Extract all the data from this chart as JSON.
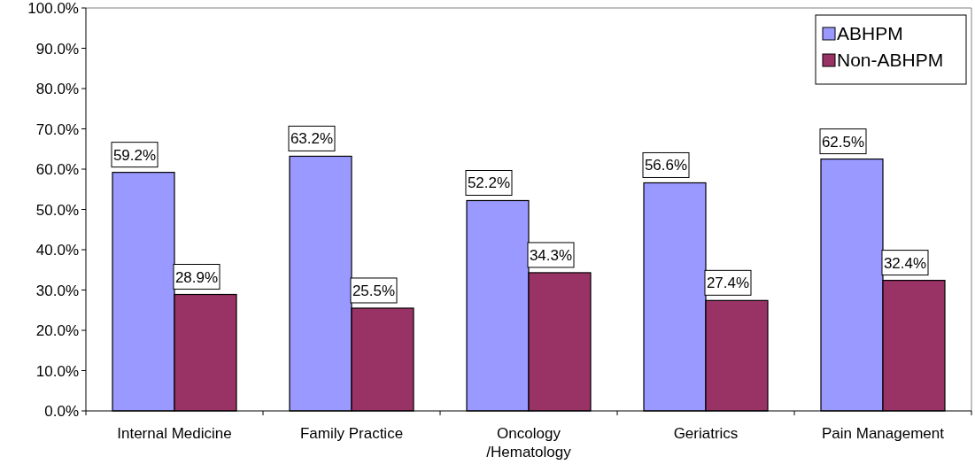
{
  "chart_data": {
    "type": "bar",
    "categories": [
      "Internal Medicine",
      "Family Practice",
      "Oncology /Hematology",
      "Geriatrics",
      "Pain Management"
    ],
    "series": [
      {
        "name": "ABHPM",
        "color": "#9999ff",
        "values": [
          59.2,
          63.2,
          52.2,
          56.6,
          62.5
        ],
        "value_labels": [
          "59.2%",
          "63.2%",
          "52.2%",
          "56.6%",
          "62.5%"
        ]
      },
      {
        "name": "Non-ABHPM",
        "color": "#993366",
        "values": [
          28.9,
          25.5,
          34.3,
          27.4,
          32.4
        ],
        "value_labels": [
          "28.9%",
          "25.5%",
          "34.3%",
          "27.4%",
          "32.4%"
        ]
      }
    ],
    "ylim": [
      0,
      100
    ],
    "yticks": [
      {
        "value": 0,
        "label": "0.0%"
      },
      {
        "value": 10,
        "label": "10.0%"
      },
      {
        "value": 20,
        "label": "20.0%"
      },
      {
        "value": 30,
        "label": "30.0%"
      },
      {
        "value": 40,
        "label": "40.0%"
      },
      {
        "value": 50,
        "label": "50.0%"
      },
      {
        "value": 60,
        "label": "60.0%"
      },
      {
        "value": 70,
        "label": "70.0%"
      },
      {
        "value": 80,
        "label": "80.0%"
      },
      {
        "value": 90,
        "label": "90.0%"
      },
      {
        "value": 100,
        "label": "100.0%"
      }
    ],
    "legend": "top right",
    "grid": false
  }
}
